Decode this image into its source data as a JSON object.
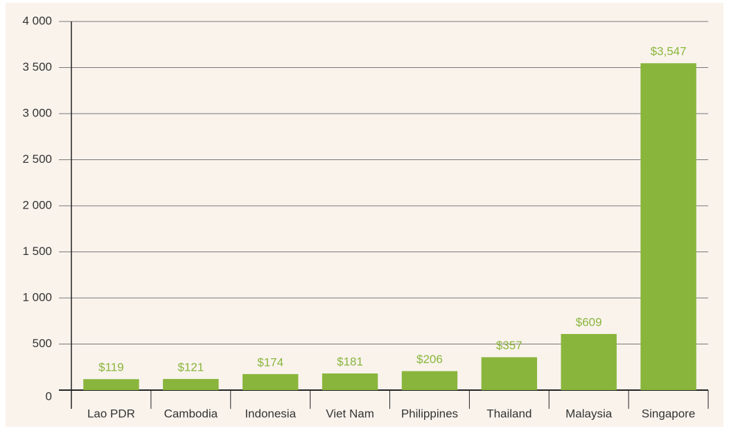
{
  "chart_data": {
    "type": "bar",
    "categories": [
      "Lao PDR",
      "Cambodia",
      "Indonesia",
      "Viet Nam",
      "Philippines",
      "Thailand",
      "Malaysia",
      "Singapore"
    ],
    "values": [
      119,
      121,
      174,
      181,
      206,
      357,
      609,
      3547
    ],
    "value_labels": [
      "$119",
      "$121",
      "$174",
      "$181",
      "$206",
      "$357",
      "$609",
      "$3,547"
    ],
    "color": "#8ab53c",
    "ylim": [
      0,
      4000
    ],
    "yticks": [
      0,
      500,
      {
        "value": 1000,
        "label": "1 000"
      },
      {
        "value": 1500,
        "label": "1 500"
      },
      {
        "value": 2000,
        "label": "2 000"
      },
      {
        "value": 2500,
        "label": "2 500"
      },
      {
        "value": 3000,
        "label": "3 000"
      },
      {
        "value": 3500,
        "label": "3 500"
      },
      {
        "value": 4000,
        "label": "4 000"
      }
    ],
    "grid": true
  }
}
